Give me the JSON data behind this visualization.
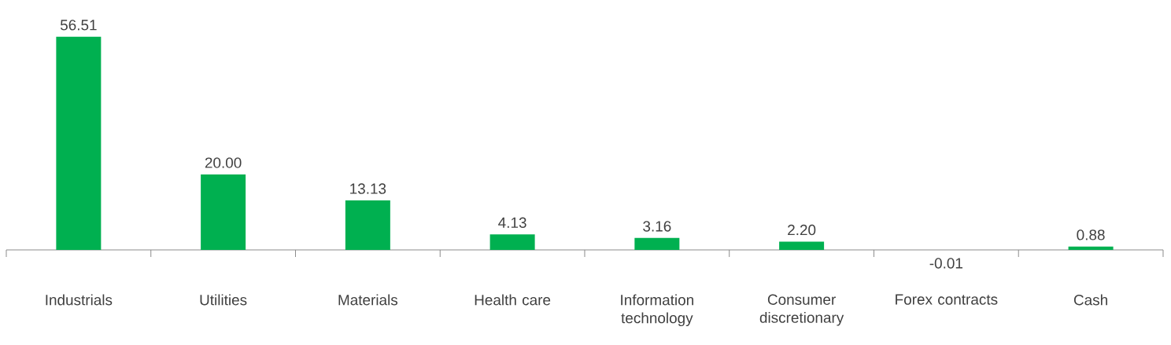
{
  "chart_data": {
    "type": "bar",
    "categories": [
      "Industrials",
      "Utilities",
      "Materials",
      "Health care",
      "Information technology",
      "Consumer discretionary",
      "Forex contracts",
      "Cash"
    ],
    "values": [
      56.51,
      20.0,
      13.13,
      4.13,
      3.16,
      2.2,
      -0.01,
      0.88
    ],
    "value_labels": [
      "56.51",
      "20.00",
      "13.13",
      "4.13",
      "3.16",
      "2.20",
      "-0.01",
      "0.88"
    ],
    "color": "#00b050"
  }
}
